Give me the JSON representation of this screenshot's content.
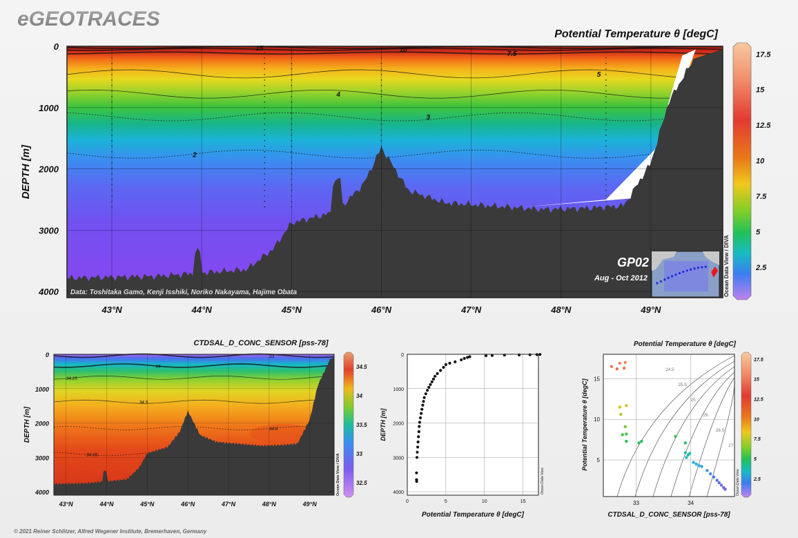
{
  "app": {
    "logo": "eGEOTRACES",
    "copyright": "© 2021 Reiner Schlitzer, Alfred Wegener Institute, Bremerhaven, Germany"
  },
  "colors": {
    "bathymetry": "#3a3a3a",
    "background": "#efefef"
  },
  "main": {
    "title": "Potential Temperature θ [degC]",
    "ylabel": "DEPTH [m]",
    "credit": "Data: Toshitaka Gamo, Kenji Isshiki, Noriko Nakayama, Hajime Obata",
    "section_id": "GP02",
    "cruise_dates": "Aug - Oct 2012",
    "odv_label": "Ocean Data View / DIVA",
    "xticks": [
      "43°N",
      "44°N",
      "45°N",
      "46°N",
      "47°N",
      "48°N",
      "49°N"
    ],
    "yticks": [
      "0",
      "1000",
      "2000",
      "3000",
      "4000"
    ],
    "colorbar_ticks": [
      "17.5",
      "15",
      "12.5",
      "10",
      "7.5",
      "5",
      "2.5"
    ],
    "contour_labels": [
      "15",
      "10",
      "7.5",
      "5",
      "4",
      "3",
      "2"
    ]
  },
  "bottom_left": {
    "title": "CTDSAL_D_CONC_SENSOR [pss-78]",
    "ylabel": "DEPTH [m]",
    "odv_label": "Ocean Data View / DIVA",
    "xticks": [
      "43°N",
      "44°N",
      "45°N",
      "46°N",
      "47°N",
      "48°N",
      "49°N"
    ],
    "yticks": [
      "0",
      "1000",
      "2000",
      "3000",
      "4000"
    ],
    "colorbar_ticks": [
      "34.5",
      "34",
      "33.5",
      "33",
      "32.5"
    ],
    "contour_labels": [
      "33",
      "34",
      "34.25",
      "34.5",
      "34.6",
      "34.65"
    ]
  },
  "bottom_mid": {
    "xlabel": "Potential Temperature θ [degC]",
    "ylabel": "DEPTH [m]",
    "odv_label": "Ocean Data View",
    "xticks": [
      "0",
      "5",
      "10",
      "15"
    ],
    "yticks": [
      "0",
      "1000",
      "2000",
      "3000",
      "4000"
    ]
  },
  "bottom_right": {
    "title": "Potential Temperature θ [degC]",
    "xlabel": "CTDSAL_D_CONC_SENSOR [pss-78]",
    "ylabel": "Potential Temperature θ [degC]",
    "odv_label": "Ocean Data View",
    "xticks": [
      "33",
      "34"
    ],
    "yticks": [
      "15",
      "10",
      "5"
    ],
    "colorbar_ticks": [
      "17.5",
      "15",
      "12.5",
      "10",
      "7.5",
      "5",
      "2.5"
    ],
    "sigma_labels": [
      "24.5",
      "25.5",
      "25",
      "26",
      "26.5",
      "27"
    ]
  },
  "chart_data": [
    {
      "type": "heatmap",
      "title": "Potential Temperature θ [degC]",
      "xlabel": "",
      "ylabel": "DEPTH [m]",
      "xlim": [
        42.5,
        49.8
      ],
      "ylim": [
        4100,
        0
      ],
      "colorbar_range": [
        0.5,
        18
      ],
      "contours": [
        {
          "level": 15,
          "depth_m": 20
        },
        {
          "level": 10,
          "depth_m": 50
        },
        {
          "level": 7.5,
          "depth_m": 110
        },
        {
          "level": 5,
          "depth_m": 450
        },
        {
          "level": 4,
          "depth_m": 780
        },
        {
          "level": 3,
          "depth_m": 1150
        },
        {
          "level": 2,
          "depth_m": 1760
        }
      ],
      "bathymetry": {
        "lat": [
          42.5,
          43.5,
          44.5,
          44.8,
          45.0,
          45.5,
          45.8,
          46.0,
          46.3,
          46.7,
          47.2,
          47.8,
          48.3,
          48.7,
          49.0,
          49.2,
          49.5
        ],
        "depth_m": [
          3780,
          3750,
          3640,
          3300,
          2880,
          2700,
          2250,
          1650,
          2350,
          2550,
          2600,
          2660,
          2640,
          2600,
          1900,
          900,
          150
        ]
      }
    },
    {
      "type": "heatmap",
      "title": "CTDSAL_D_CONC_SENSOR [pss-78]",
      "xlabel": "",
      "ylabel": "DEPTH [m]",
      "xlim": [
        42.7,
        49.6
      ],
      "ylim": [
        4100,
        0
      ],
      "colorbar_range": [
        32.3,
        34.7
      ],
      "contours": [
        {
          "level": 33,
          "depth_m": 40
        },
        {
          "level": 34,
          "depth_m": 330
        },
        {
          "level": 34.25,
          "depth_m": 680
        },
        {
          "level": 34.5,
          "depth_m": 1380
        },
        {
          "level": 34.6,
          "depth_m": 2150
        },
        {
          "level": 34.65,
          "depth_m": 2900
        }
      ]
    },
    {
      "type": "scatter",
      "xlabel": "Potential Temperature θ [degC]",
      "ylabel": "DEPTH [m]",
      "xlim": [
        0,
        17
      ],
      "ylim": [
        4100,
        0
      ],
      "points": [
        [
          17.2,
          5
        ],
        [
          16.8,
          10
        ],
        [
          15.9,
          15
        ],
        [
          14.5,
          20
        ],
        [
          12.6,
          25
        ],
        [
          11.0,
          35
        ],
        [
          10.2,
          40
        ],
        [
          8.1,
          70
        ],
        [
          7.8,
          90
        ],
        [
          7.4,
          120
        ],
        [
          7.0,
          160
        ],
        [
          6.2,
          220
        ],
        [
          5.5,
          260
        ],
        [
          5.0,
          300
        ],
        [
          4.7,
          380
        ],
        [
          4.3,
          470
        ],
        [
          3.9,
          560
        ],
        [
          3.6,
          640
        ],
        [
          3.4,
          720
        ],
        [
          3.2,
          800
        ],
        [
          3.0,
          880
        ],
        [
          2.8,
          960
        ],
        [
          2.6,
          1050
        ],
        [
          2.4,
          1150
        ],
        [
          2.2,
          1260
        ],
        [
          2.1,
          1370
        ],
        [
          2.0,
          1480
        ],
        [
          1.9,
          1600
        ],
        [
          1.8,
          1720
        ],
        [
          1.7,
          1850
        ],
        [
          1.6,
          1980
        ],
        [
          1.55,
          2100
        ],
        [
          1.5,
          2250
        ],
        [
          1.45,
          2400
        ],
        [
          1.4,
          2550
        ],
        [
          1.35,
          2700
        ],
        [
          1.3,
          2850
        ],
        [
          1.25,
          3000
        ],
        [
          1.2,
          3450
        ],
        [
          1.2,
          3650
        ],
        [
          1.22,
          3700
        ]
      ]
    },
    {
      "type": "scatter",
      "xlabel": "CTDSAL_D_CONC_SENSOR [pss-78]",
      "ylabel": "Potential Temperature θ [degC]",
      "xlim": [
        32.4,
        34.8
      ],
      "ylim": [
        0.5,
        18
      ],
      "points": [
        [
          32.55,
          16.5
        ],
        [
          32.7,
          16.9
        ],
        [
          32.65,
          16.2
        ],
        [
          32.8,
          17.0
        ],
        [
          32.78,
          16.3
        ],
        [
          32.7,
          11.5
        ],
        [
          32.72,
          10.6
        ],
        [
          32.82,
          11.7
        ],
        [
          32.75,
          8.1
        ],
        [
          32.82,
          8.2
        ],
        [
          32.8,
          9.1
        ],
        [
          32.82,
          7.3
        ],
        [
          33.05,
          7.1
        ],
        [
          33.1,
          7.3
        ],
        [
          33.72,
          7.9
        ],
        [
          33.9,
          7.1
        ],
        [
          33.9,
          5.9
        ],
        [
          33.95,
          5.6
        ],
        [
          33.92,
          5.3
        ],
        [
          33.98,
          5.8
        ],
        [
          34.05,
          4.7
        ],
        [
          34.1,
          4.5
        ],
        [
          34.15,
          4.3
        ],
        [
          34.2,
          4.2
        ],
        [
          34.3,
          3.7
        ],
        [
          34.36,
          3.3
        ],
        [
          34.42,
          2.9
        ],
        [
          34.48,
          2.5
        ],
        [
          34.52,
          2.2
        ],
        [
          34.56,
          1.9
        ],
        [
          34.6,
          1.6
        ],
        [
          34.63,
          1.4
        ]
      ]
    }
  ]
}
